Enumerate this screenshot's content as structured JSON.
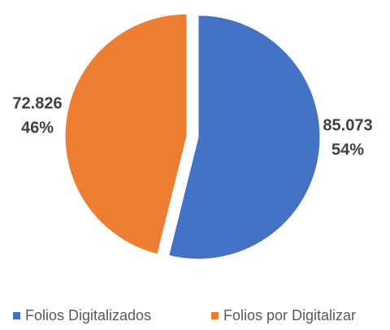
{
  "chart_data": {
    "type": "pie",
    "categories": [
      "Folios Digitalizados",
      "Folios por Digitalizar"
    ],
    "values": [
      85073,
      72826
    ],
    "value_labels": [
      "85.073",
      "72.826"
    ],
    "percents": [
      54,
      46
    ],
    "percent_labels": [
      "54%",
      "46%"
    ],
    "colors": [
      "#4472c4",
      "#ed7d31"
    ],
    "legend": "bottom"
  }
}
